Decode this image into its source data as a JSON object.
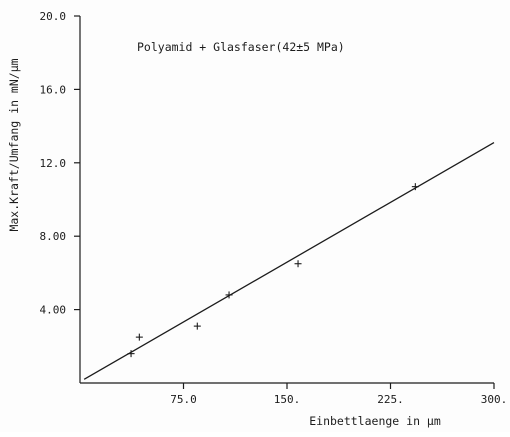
{
  "chart_data": {
    "type": "scatter",
    "title": "",
    "annotation": "Polyamid + Glasfaser(42±5 MPa)",
    "xlabel": "Einbettlaenge in µm",
    "ylabel": "Max.Kraft/Umfang in mN/µm",
    "xlim": [
      0,
      300
    ],
    "ylim": [
      0,
      20
    ],
    "x_ticks": [
      75,
      150,
      225,
      300
    ],
    "x_tick_labels": [
      "75.0",
      "150.",
      "225.",
      "300."
    ],
    "y_ticks": [
      4,
      8,
      12,
      16,
      20
    ],
    "y_tick_labels": [
      "4.00",
      "8.00",
      "12.0",
      "16.0",
      "20.0"
    ],
    "grid": false,
    "series": [
      {
        "marker": "+",
        "points": [
          {
            "x": 37,
            "y": 1.6
          },
          {
            "x": 43,
            "y": 2.5
          },
          {
            "x": 85,
            "y": 3.1
          },
          {
            "x": 108,
            "y": 4.8
          },
          {
            "x": 158,
            "y": 6.5
          },
          {
            "x": 243,
            "y": 10.7
          }
        ]
      }
    ],
    "fit_line": {
      "style": "solid",
      "points": [
        {
          "x": 3,
          "y": 0.2
        },
        {
          "x": 300,
          "y": 13.1
        }
      ]
    },
    "colors": {
      "ink": "#1c1c1c",
      "background": "#fdfdfd"
    }
  }
}
